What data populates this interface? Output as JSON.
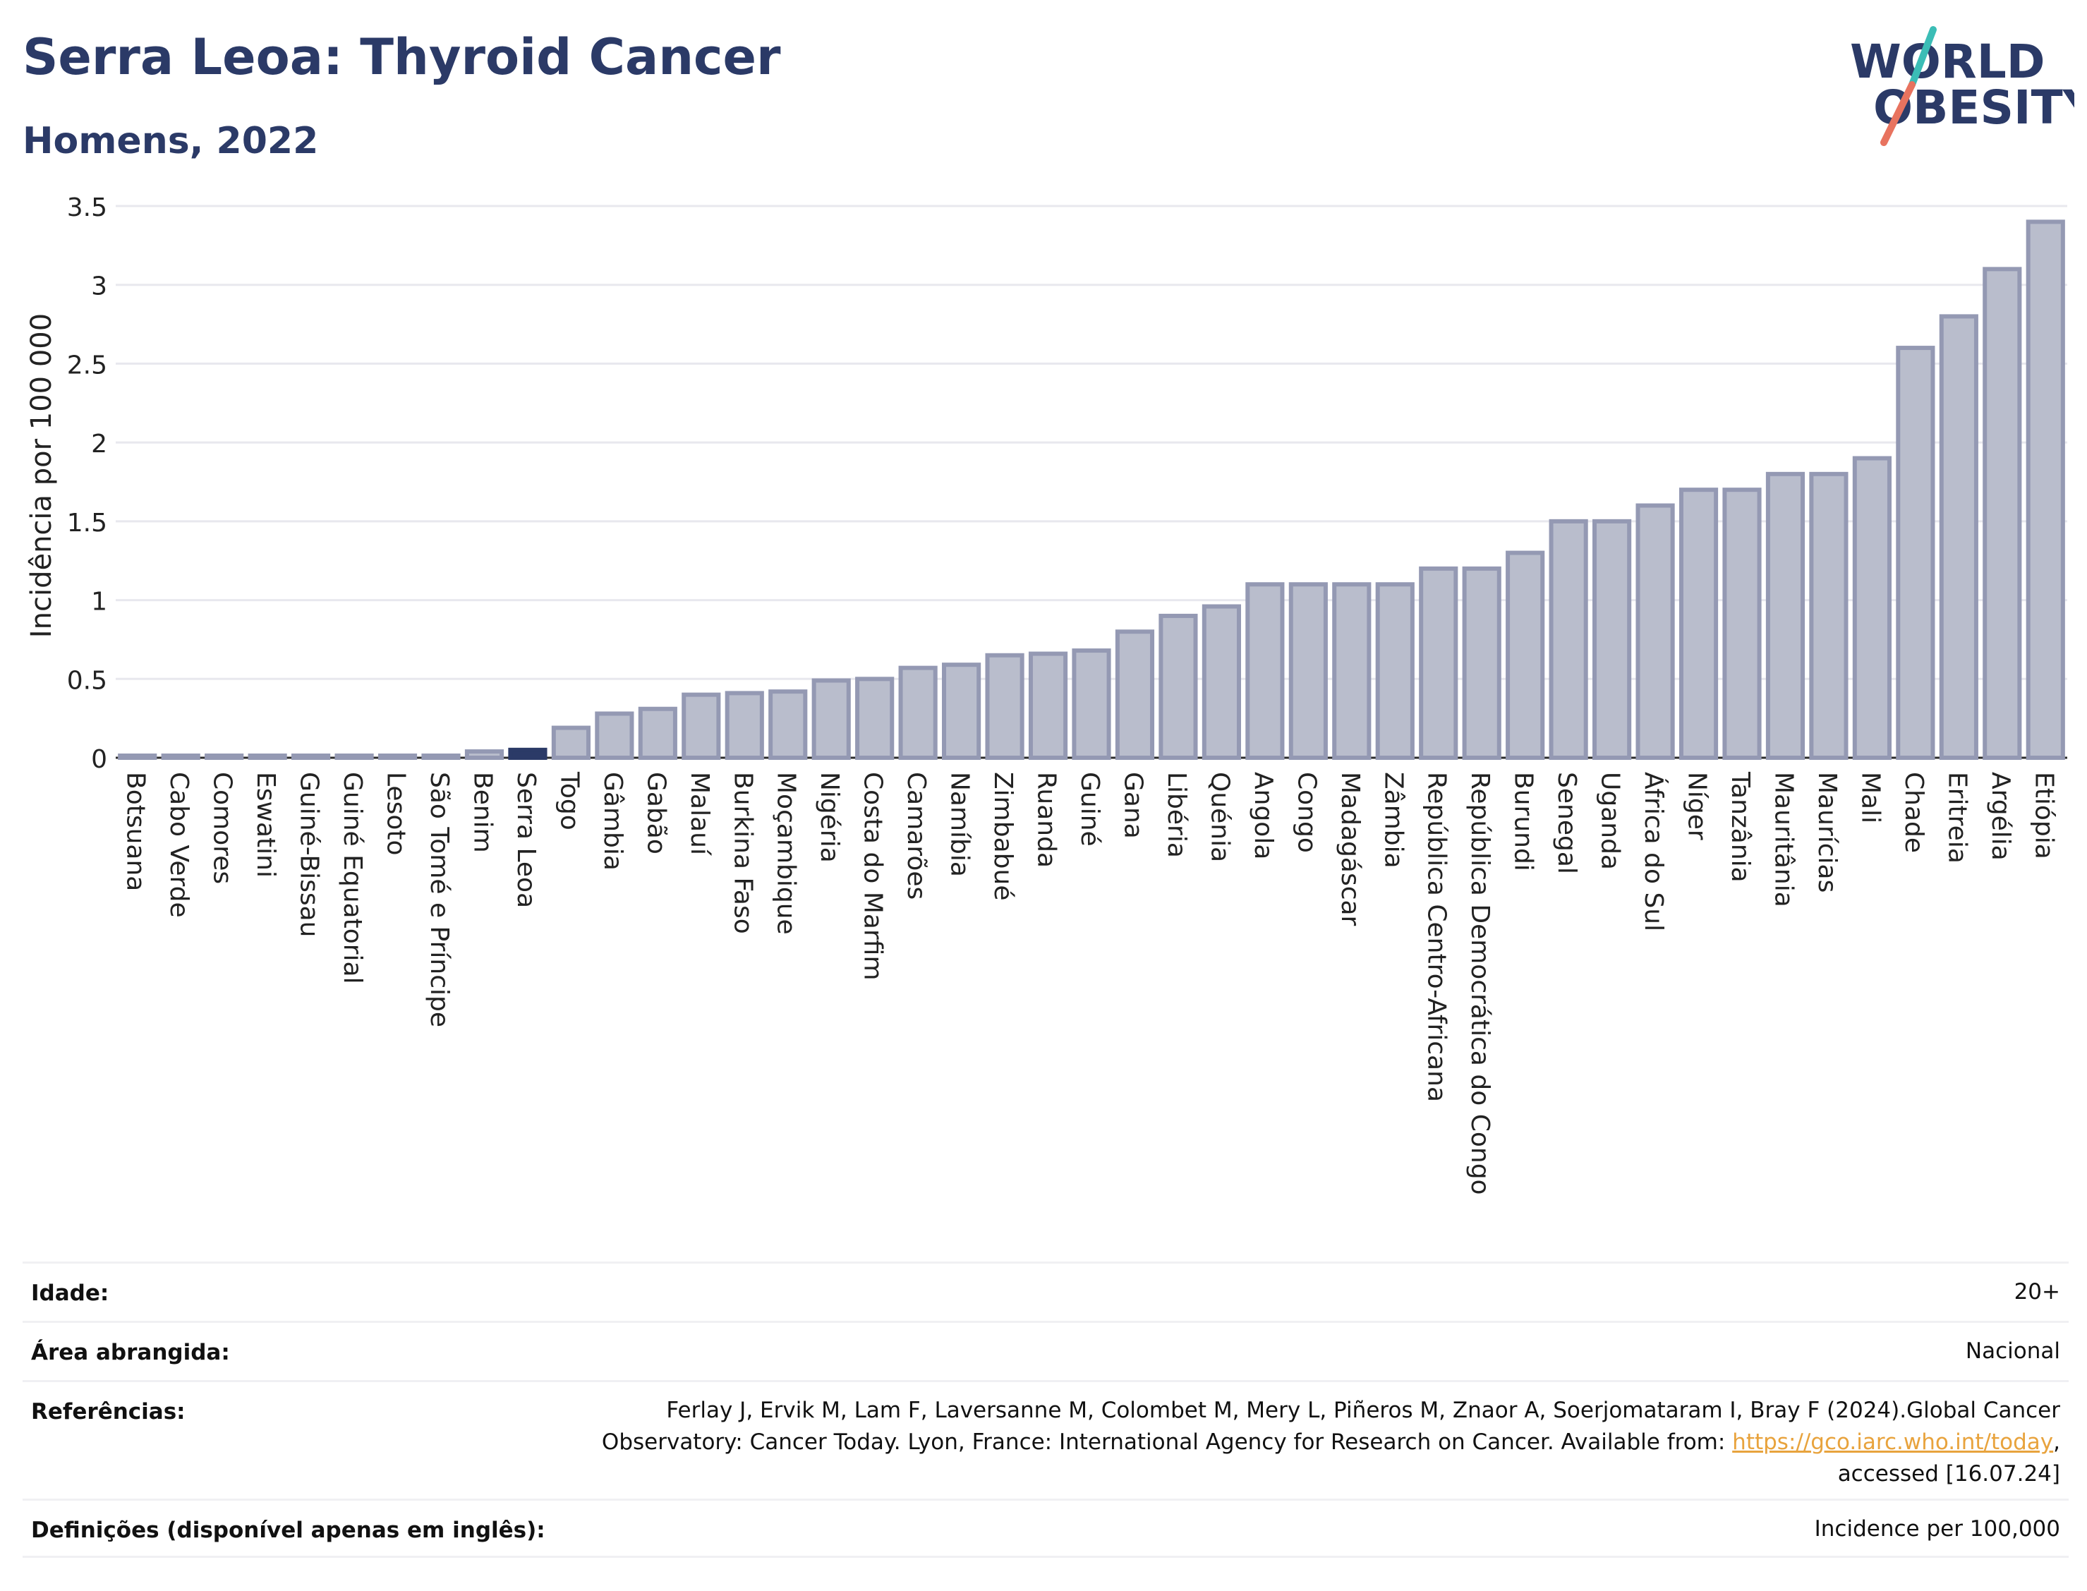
{
  "header": {
    "title": "Serra Leoa: Thyroid Cancer",
    "subtitle": "Homens, 2022"
  },
  "logo": {
    "line1": "WORLD",
    "line2": "OBESITY"
  },
  "colors": {
    "title": "#2b3a67",
    "bar": "#b9bdcc",
    "bar_stroke": "#9499b3",
    "highlight": "#2b3a67",
    "link": "#e8a33d"
  },
  "chart_data": {
    "type": "bar",
    "ylabel": "Incidência por 100 000",
    "ylim": [
      0,
      3.5
    ],
    "yticks": [
      0,
      0.5,
      1,
      1.5,
      2,
      2.5,
      3,
      3.5
    ],
    "ytick_labels": [
      "0",
      "0.5",
      "1",
      "1.5",
      "2",
      "2.5",
      "3",
      "3.5"
    ],
    "grid": true,
    "highlight_category": "Serra Leoa",
    "categories": [
      "Botsuana",
      "Cabo Verde",
      "Comores",
      "Eswatini",
      "Guiné-Bissau",
      "Guiné Equatorial",
      "Lesoto",
      "São Tomé e Príncipe",
      "Benim",
      "Serra Leoa",
      "Togo",
      "Gâmbia",
      "Gabão",
      "Malauí",
      "Burkina Faso",
      "Moçambique",
      "Nigéria",
      "Costa do Marfim",
      "Camarões",
      "Namíbia",
      "Zimbabué",
      "Ruanda",
      "Guiné",
      "Gana",
      "Libéria",
      "Quénia",
      "Angola",
      "Congo",
      "Madagáscar",
      "Zâmbia",
      "República Centro-Africana",
      "República Democrática do Congo",
      "Burundi",
      "Senegal",
      "Uganda",
      "África do Sul",
      "Níger",
      "Tanzânia",
      "Mauritânia",
      "Maurícias",
      "Mali",
      "Chade",
      "Eritreia",
      "Argélia",
      "Etiópia"
    ],
    "values": [
      0.01,
      0.01,
      0.01,
      0.01,
      0.01,
      0.01,
      0.01,
      0.01,
      0.04,
      0.05,
      0.19,
      0.28,
      0.31,
      0.4,
      0.41,
      0.42,
      0.49,
      0.5,
      0.57,
      0.59,
      0.65,
      0.66,
      0.68,
      0.8,
      0.9,
      0.96,
      1.1,
      1.1,
      1.1,
      1.1,
      1.2,
      1.2,
      1.3,
      1.5,
      1.5,
      1.6,
      1.7,
      1.7,
      1.8,
      1.8,
      1.9,
      2.6,
      2.8,
      3.1,
      3.4
    ]
  },
  "info": {
    "age_label": "Idade:",
    "age_value": "20+",
    "area_label": "Área abrangida:",
    "area_value": "Nacional",
    "ref_label": "Referências:",
    "ref_text1": "Ferlay J, Ervik M, Lam F, Laversanne M, Colombet M, Mery L, Piñeros M, Znaor A, Soerjomataram I, Bray F (2024).Global Cancer",
    "ref_text2": "Observatory: Cancer Today. Lyon, France: International Agency for Research on Cancer. Available from: ",
    "ref_link": "https://gco.iarc.who.int/today",
    "ref_text3": ",",
    "ref_text4": "accessed [16.07.24]",
    "def_label": "Definições (disponível apenas em inglês):",
    "def_value": "Incidence per 100,000"
  }
}
